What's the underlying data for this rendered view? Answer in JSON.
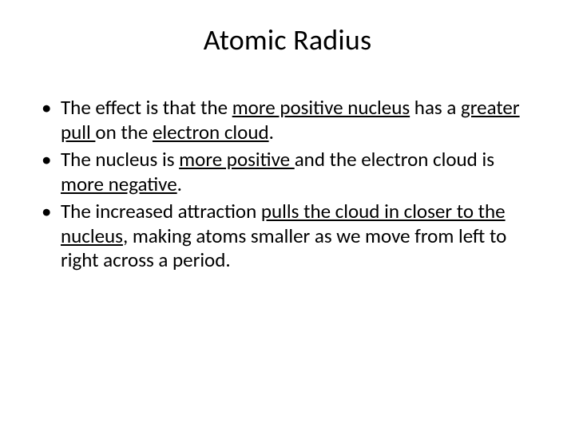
{
  "title": "Atomic Radius",
  "bullets": [
    {
      "parts": [
        {
          "text": "The effect is that the ",
          "u": false
        },
        {
          "text": "more positive nucleus",
          "u": true
        },
        {
          "text": " has a ",
          "u": false
        },
        {
          "text": "greater pull ",
          "u": true
        },
        {
          "text": "on the ",
          "u": false
        },
        {
          "text": "electron cloud",
          "u": true
        },
        {
          "text": ".",
          "u": false
        }
      ]
    },
    {
      "parts": [
        {
          "text": "The nucleus is ",
          "u": false
        },
        {
          "text": "more positive ",
          "u": true
        },
        {
          "text": "and the electron cloud is ",
          "u": false
        },
        {
          "text": "more negative",
          "u": true
        },
        {
          "text": ".",
          "u": false
        }
      ]
    },
    {
      "parts": [
        {
          "text": "The increased attraction ",
          "u": false
        },
        {
          "text": "pulls the cloud in closer to the nucleus",
          "u": true
        },
        {
          "text": ", making atoms smaller as we move from left to right across a period.",
          "u": false
        }
      ]
    }
  ],
  "style": {
    "background_color": "#ffffff",
    "text_color": "#000000",
    "title_fontsize": 36,
    "body_fontsize": 25,
    "font_family": "Calibri"
  }
}
